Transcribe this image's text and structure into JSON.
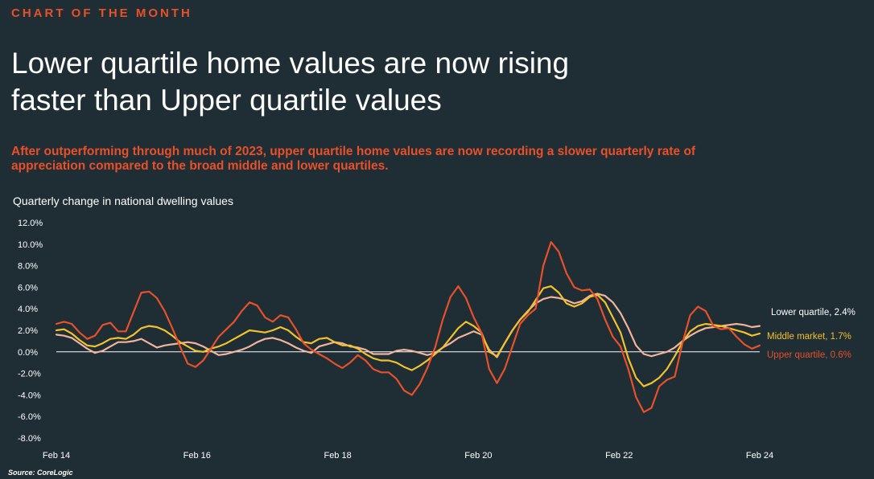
{
  "header": {
    "kicker": "CHART OF THE MONTH",
    "headline_line1": "Lower quartile home values are now rising",
    "headline_line2": "faster than Upper quartile values",
    "subhead_line1": "After outperforming through much of 2023, upper quartile home values are now recording a slower quarterly rate of",
    "subhead_line2": "appreciation compared to the broad middle and lower quartiles."
  },
  "source": "Source: CoreLogic",
  "chart_data": {
    "type": "line",
    "title": "Quarterly change in national dwelling values",
    "x_start": "Feb 14",
    "x_end": "Feb 24",
    "x_ticks": [
      "Feb 14",
      "Feb 16",
      "Feb 18",
      "Feb 20",
      "Feb 22",
      "Feb 24"
    ],
    "y_ticks": [
      "12.0%",
      "10.0%",
      "8.0%",
      "6.0%",
      "4.0%",
      "2.0%",
      "0.0%",
      "-2.0%",
      "-4.0%",
      "-6.0%",
      "-8.0%"
    ],
    "ylim": [
      -8,
      12
    ],
    "grid": false,
    "legend": "end-labels",
    "series": [
      {
        "name": "Lower quartile, 2.4%",
        "color": "#f2b49c",
        "values": [
          1.6,
          1.5,
          1.3,
          0.8,
          0.3,
          -0.1,
          0.1,
          0.5,
          0.9,
          0.9,
          1.0,
          1.2,
          0.8,
          0.4,
          0.6,
          0.7,
          0.8,
          0.9,
          0.8,
          0.5,
          0.1,
          -0.3,
          -0.2,
          0.0,
          0.2,
          0.5,
          0.9,
          1.2,
          1.3,
          1.1,
          0.8,
          0.4,
          0.1,
          -0.1,
          0.5,
          0.7,
          0.9,
          0.8,
          0.5,
          0.4,
          0.2,
          -0.2,
          -0.2,
          -0.2,
          0.1,
          0.2,
          0.1,
          -0.1,
          -0.3,
          -0.1,
          0.4,
          0.8,
          1.3,
          1.6,
          1.9,
          1.6,
          0.2,
          -0.5,
          0.8,
          2.0,
          3.0,
          3.8,
          4.5,
          4.9,
          5.1,
          5.0,
          4.8,
          4.5,
          4.7,
          5.2,
          5.4,
          5.2,
          4.6,
          3.6,
          2.2,
          0.6,
          -0.2,
          -0.4,
          -0.2,
          0.0,
          0.4,
          1.0,
          1.5,
          1.9,
          2.2,
          2.3,
          2.4,
          2.5,
          2.6,
          2.5,
          2.3,
          2.4
        ]
      },
      {
        "name": "Middle market, 1.7%",
        "color": "#f2c12e",
        "values": [
          2.0,
          2.1,
          1.7,
          1.1,
          0.6,
          0.5,
          0.8,
          1.2,
          1.3,
          1.2,
          1.6,
          2.2,
          2.4,
          2.3,
          2.0,
          1.5,
          0.9,
          0.5,
          0.1,
          0.0,
          0.3,
          0.5,
          0.8,
          1.2,
          1.6,
          2.0,
          1.9,
          1.8,
          2.0,
          2.3,
          2.0,
          1.4,
          0.9,
          0.8,
          1.2,
          1.3,
          0.9,
          0.6,
          0.6,
          0.3,
          -0.2,
          -0.6,
          -0.8,
          -0.8,
          -1.0,
          -1.4,
          -1.7,
          -1.3,
          -0.8,
          -0.2,
          0.4,
          1.3,
          2.2,
          2.8,
          2.4,
          1.8,
          0.0,
          -0.4,
          0.8,
          2.0,
          3.0,
          3.7,
          4.8,
          5.9,
          6.1,
          5.5,
          4.5,
          4.2,
          4.5,
          5.1,
          5.3,
          4.6,
          3.2,
          1.8,
          -0.6,
          -2.4,
          -3.2,
          -2.9,
          -2.4,
          -1.6,
          -0.4,
          0.9,
          1.9,
          2.4,
          2.6,
          2.5,
          2.4,
          2.2,
          2.0,
          1.8,
          1.5,
          1.7
        ]
      },
      {
        "name": "Upper quartile, 0.6%",
        "color": "#e8502a",
        "values": [
          2.6,
          2.8,
          2.6,
          1.8,
          1.2,
          1.5,
          2.5,
          2.7,
          1.9,
          1.9,
          3.7,
          5.5,
          5.6,
          5.0,
          3.8,
          2.2,
          0.5,
          -1.1,
          -1.4,
          -0.8,
          0.3,
          1.4,
          2.1,
          2.8,
          3.8,
          4.6,
          4.3,
          3.2,
          2.8,
          3.4,
          3.2,
          2.1,
          0.8,
          0.2,
          -0.2,
          -0.6,
          -1.1,
          -1.5,
          -1.0,
          -0.3,
          -0.8,
          -1.6,
          -1.9,
          -1.9,
          -2.5,
          -3.6,
          -4.0,
          -3.0,
          -1.5,
          0.4,
          3.0,
          5.1,
          6.1,
          5.0,
          3.2,
          1.8,
          -1.6,
          -2.9,
          -1.6,
          0.5,
          2.6,
          3.4,
          4.0,
          8.0,
          10.2,
          9.3,
          7.3,
          6.0,
          5.7,
          5.8,
          4.9,
          3.0,
          1.4,
          0.5,
          -1.6,
          -4.2,
          -5.6,
          -5.2,
          -3.2,
          -2.6,
          -2.3,
          0.8,
          3.4,
          4.2,
          3.8,
          2.4,
          2.1,
          2.2,
          1.4,
          0.7,
          0.3,
          0.6
        ]
      }
    ]
  }
}
